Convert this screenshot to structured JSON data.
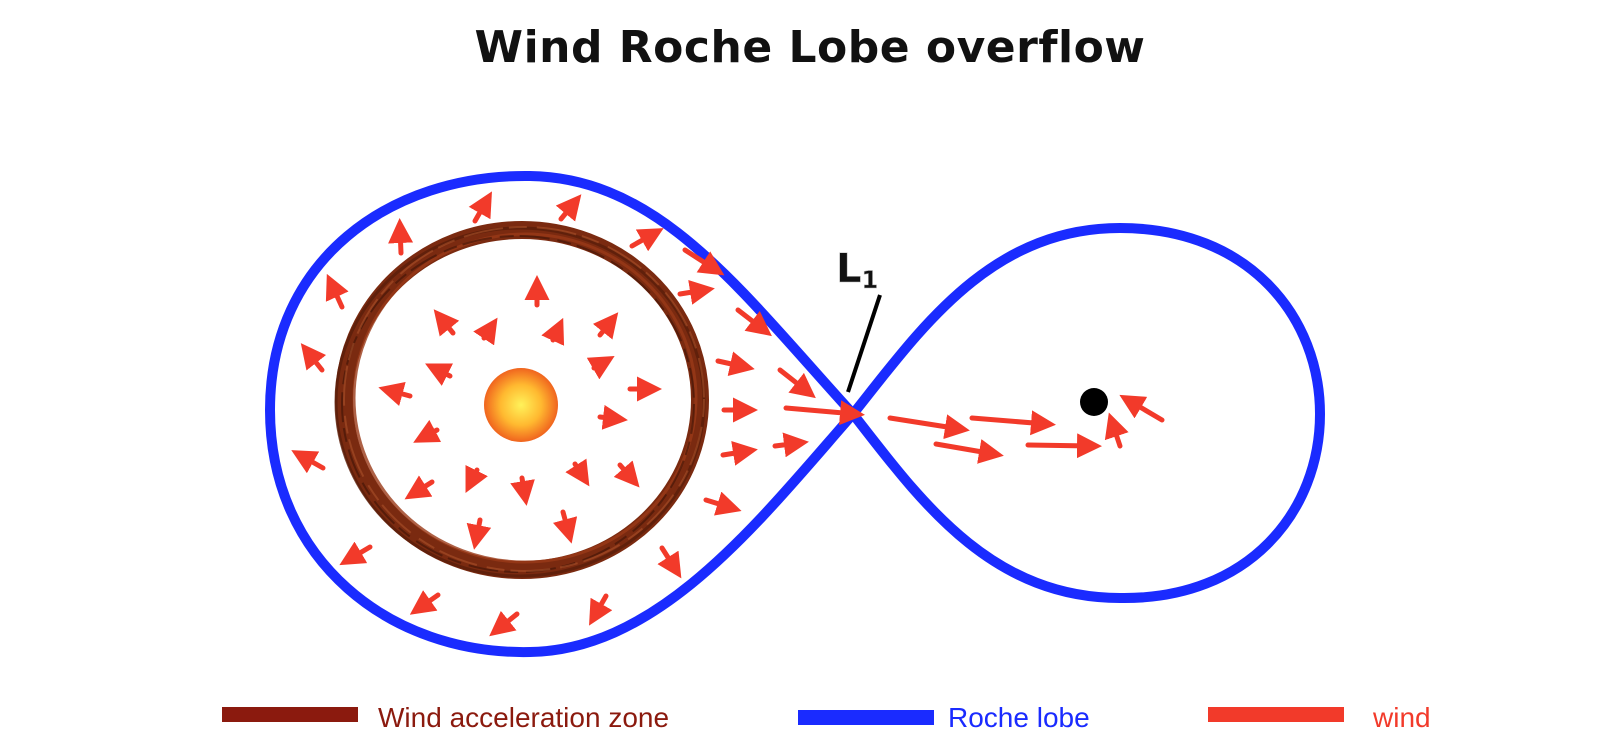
{
  "title": "Wind Roche Lobe overflow",
  "labels": {
    "lagrange_point": "L",
    "lagrange_subscript": "1"
  },
  "legend": [
    {
      "key": "zone",
      "label": "Wind acceleration zone",
      "color": "#8B1A0E"
    },
    {
      "key": "lobe",
      "label": "Roche lobe",
      "color": "#1A2BFF"
    },
    {
      "key": "wind",
      "label": "wind",
      "color": "#F23A2A"
    }
  ],
  "colors": {
    "roche_lobe": "#1A2BFF",
    "acceleration_zone": "#7A2A10",
    "wind_arrow": "#F23A2A",
    "star_core": "#FFE24A",
    "star_edge": "#F0641E",
    "companion": "#000000",
    "l1_pointer": "#000000"
  }
}
